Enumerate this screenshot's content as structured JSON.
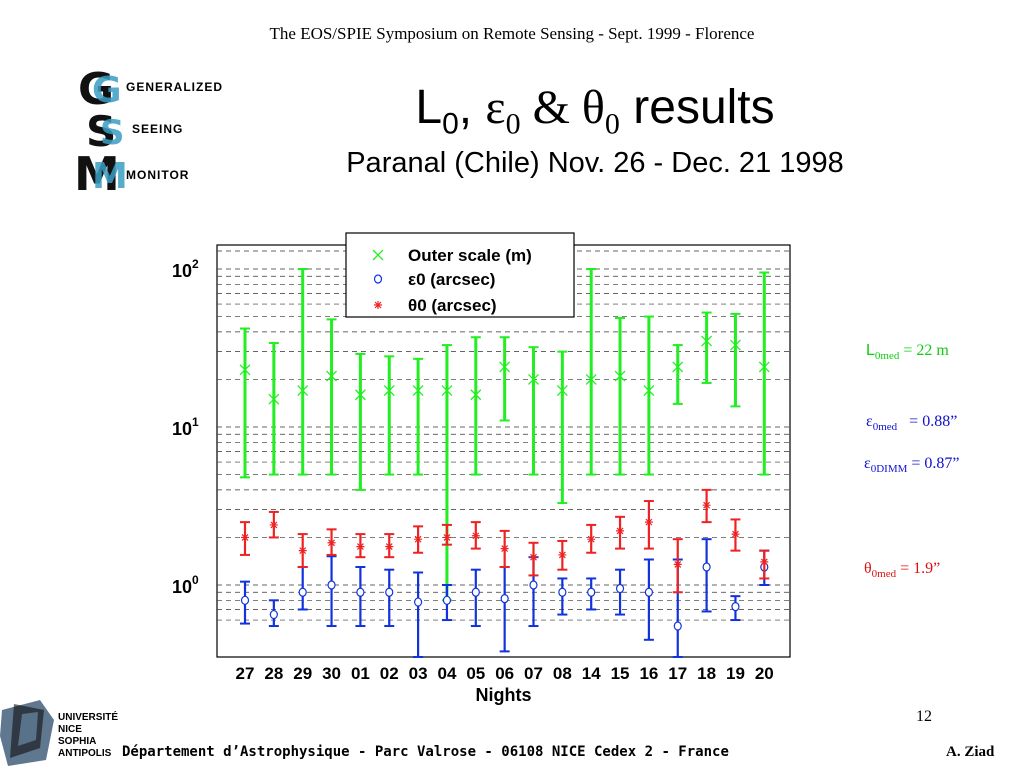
{
  "header": {
    "conference": "The EOS/SPIE Symposium on  Remote Sensing - Sept. 1999 - Florence",
    "title": {
      "L": "L",
      "L_sub": "0",
      "sep1": ", ",
      "eps": "ε",
      "eps_sub": "0",
      "sep2": " & ",
      "theta": "θ",
      "theta_sub": "0",
      "rest": " results"
    },
    "subtitle": "Paranal (Chile) Nov. 26 - Dec. 21 1998"
  },
  "logo_gsm": {
    "line1": "GENERALIZED",
    "line2": "SEEING",
    "line3": "MONITOR"
  },
  "chart_data": {
    "type": "scatter",
    "xlabel": "Nights",
    "categories": [
      "27",
      "28",
      "29",
      "30",
      "01",
      "02",
      "03",
      "04",
      "05",
      "06",
      "07",
      "08",
      "14",
      "15",
      "16",
      "17",
      "18",
      "19",
      "20"
    ],
    "yscale": "log",
    "ylim": [
      0.5,
      130
    ],
    "yticks": [
      {
        "value": 1,
        "base": "10",
        "exp": "0"
      },
      {
        "value": 10,
        "base": "10",
        "exp": "1"
      },
      {
        "value": 100,
        "base": "10",
        "exp": "2"
      }
    ],
    "grid": "horizontal dashed",
    "legend_position": "top-center",
    "series": [
      {
        "name": "Outer scale (m)",
        "symbol": "×",
        "color": "#22ee22",
        "values": [
          23,
          15,
          17,
          21,
          16,
          17,
          17,
          17,
          16,
          24,
          20,
          17,
          20,
          21,
          17,
          24,
          35,
          33,
          24
        ],
        "low": [
          4.8,
          5,
          5,
          5,
          4,
          5,
          5,
          0.8,
          5,
          11,
          5,
          3.3,
          5,
          5,
          5,
          14,
          19,
          13.5,
          5
        ],
        "high": [
          42,
          34,
          100,
          48,
          29,
          28,
          27,
          33,
          37,
          37,
          32,
          30,
          100,
          49,
          50,
          33,
          53,
          52,
          95
        ]
      },
      {
        "name": "ε0 (arcsec)",
        "symbol": "○",
        "color": "#1133dd",
        "values": [
          0.8,
          0.65,
          0.9,
          1.0,
          0.9,
          0.9,
          0.78,
          0.8,
          0.9,
          0.82,
          1.0,
          0.9,
          0.9,
          0.95,
          0.9,
          0.55,
          1.3,
          0.73,
          1.3
        ],
        "low": [
          0.57,
          0.55,
          0.7,
          0.55,
          0.55,
          0.55,
          0.35,
          0.6,
          0.55,
          0.38,
          0.55,
          0.65,
          0.7,
          0.65,
          0.45,
          0.35,
          0.68,
          0.6,
          1.0
        ],
        "high": [
          1.05,
          0.8,
          1.3,
          1.52,
          1.3,
          1.25,
          1.2,
          1.0,
          1.25,
          1.3,
          1.5,
          1.1,
          1.1,
          1.25,
          1.45,
          1.45,
          1.95,
          0.85,
          1.65
        ]
      },
      {
        "name": "θ0 (arcsec)",
        "symbol": "*",
        "color": "#ee2222",
        "values": [
          2.0,
          2.4,
          1.65,
          1.85,
          1.75,
          1.75,
          1.95,
          2.0,
          2.05,
          1.7,
          1.5,
          1.55,
          1.95,
          2.2,
          2.5,
          1.35,
          3.2,
          2.1,
          1.4
        ],
        "low": [
          1.55,
          2.0,
          1.3,
          1.55,
          1.5,
          1.5,
          1.6,
          1.8,
          1.7,
          1.3,
          1.15,
          1.25,
          1.6,
          1.7,
          1.7,
          0.9,
          2.5,
          1.65,
          1.1
        ],
        "high": [
          2.5,
          2.9,
          2.1,
          2.25,
          2.1,
          2.1,
          2.35,
          2.4,
          2.5,
          2.2,
          1.85,
          1.9,
          2.4,
          2.7,
          3.4,
          1.95,
          4.0,
          2.6,
          1.65
        ]
      }
    ]
  },
  "annotations": {
    "L0": {
      "sym": "L",
      "sub": "0med",
      "val": " = 22 m",
      "color": "#11cc11"
    },
    "eps0": {
      "sym": "ε",
      "sub": "0med",
      "val": "   = 0.88”",
      "color": "#1111cc"
    },
    "eps0dimm": {
      "sym": "ε",
      "sub": "0DIMM",
      "val": " = 0.87”",
      "color": "#1111cc"
    },
    "theta0": {
      "sym": "θ",
      "sub": "0med",
      "val": " = 1.9”",
      "color": "#dd1111"
    }
  },
  "footer": {
    "page_number": "12",
    "department": "Département d’Astrophysique - Parc Valrose - 06108 NICE Cedex 2 - France",
    "author": "A. Ziad",
    "university_logo": {
      "line1": "UNIVERSITÉ",
      "line2": "NICE",
      "line3": "SOPHIA",
      "line4": "ANTIPOLIS"
    }
  }
}
